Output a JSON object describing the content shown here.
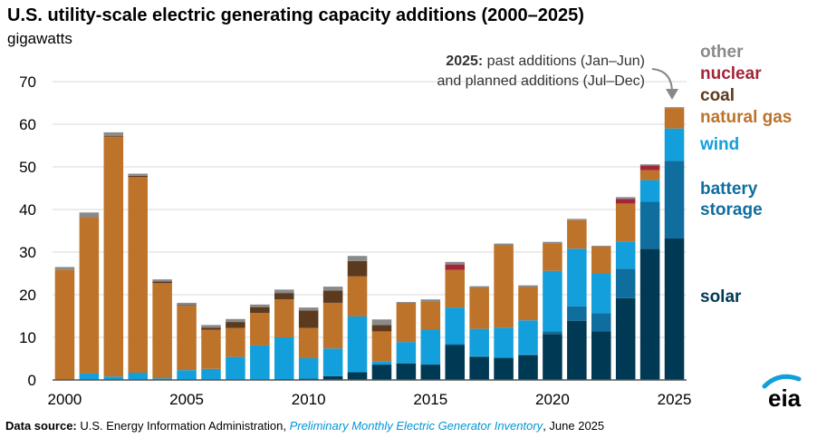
{
  "title": "U.S. utility-scale electric generating capacity additions (2000–2025)",
  "subtitle": "gigawatts",
  "annotation": {
    "bold": "2025:",
    "line1_rest": " past additions (Jan–Jun)",
    "line2": "and planned additions (Jul–Dec)"
  },
  "source": {
    "label": "Data source:",
    "text1": " U.S. Energy Information Administration, ",
    "italic": "Preliminary Monthly Electric Generator Inventory",
    "text2": ", June 2025"
  },
  "logo_text": "eia",
  "colors": {
    "solar": "#003953",
    "battery storage": "#0f6e9e",
    "wind": "#139fdb",
    "natural gas": "#bd732a",
    "coal": "#5c3a1e",
    "nuclear": "#a32638",
    "other": "#8a8a8a"
  },
  "legend": [
    {
      "name": "other",
      "label": "other"
    },
    {
      "name": "nuclear",
      "label": "nuclear"
    },
    {
      "name": "coal",
      "label": "coal"
    },
    {
      "name": "natural-gas",
      "label": "natural gas"
    },
    {
      "name": "wind",
      "label": "wind"
    },
    {
      "name": "battery",
      "label": "battery\nstorage"
    },
    {
      "name": "solar",
      "label": "solar"
    }
  ],
  "chart_data": {
    "type": "bar",
    "stacked": true,
    "ylabel": "gigawatts",
    "ylim": [
      0,
      75
    ],
    "yticks": [
      0,
      10,
      20,
      30,
      40,
      50,
      60,
      70
    ],
    "xticks": [
      2000,
      2005,
      2010,
      2015,
      2020,
      2025
    ],
    "grid": true,
    "legend_position": "right",
    "categories": [
      2000,
      2001,
      2002,
      2003,
      2004,
      2005,
      2006,
      2007,
      2008,
      2009,
      2010,
      2011,
      2012,
      2013,
      2014,
      2015,
      2016,
      2017,
      2018,
      2019,
      2020,
      2021,
      2022,
      2023,
      2024,
      2025
    ],
    "series": [
      {
        "name": "solar",
        "values": [
          0,
          0,
          0,
          0,
          0,
          0,
          0,
          0,
          0.1,
          0.2,
          0.3,
          0.9,
          1.8,
          3.6,
          3.9,
          3.6,
          8.2,
          5.4,
          5.1,
          5.8,
          10.8,
          13.9,
          11.4,
          19.2,
          30.8,
          33.2
        ]
      },
      {
        "name": "battery storage",
        "values": [
          0,
          0,
          0,
          0,
          0,
          0,
          0,
          0,
          0,
          0,
          0,
          0,
          0,
          0,
          0.1,
          0.1,
          0.2,
          0.2,
          0.2,
          0.2,
          0.6,
          3.4,
          4.3,
          6.9,
          11.0,
          18.2
        ]
      },
      {
        "name": "wind",
        "values": [
          0.1,
          1.5,
          0.8,
          1.7,
          0.4,
          2.3,
          2.6,
          5.4,
          8.0,
          9.8,
          4.8,
          6.5,
          13.1,
          0.8,
          4.9,
          8.1,
          8.6,
          6.4,
          7.0,
          8.0,
          14.2,
          13.5,
          9.3,
          6.4,
          5.1,
          7.6
        ]
      },
      {
        "name": "natural gas",
        "values": [
          25.8,
          36.7,
          56.3,
          45.9,
          22.3,
          15.1,
          9.2,
          6.8,
          7.6,
          8.9,
          7.1,
          10.7,
          9.4,
          7.0,
          9.2,
          6.5,
          8.8,
          9.6,
          19.3,
          7.8,
          6.5,
          6.7,
          6.3,
          8.9,
          2.3,
          4.8
        ]
      },
      {
        "name": "coal",
        "values": [
          0,
          0,
          0.2,
          0.3,
          0.4,
          0.2,
          0.5,
          1.4,
          1.4,
          1.5,
          4.1,
          2.9,
          3.6,
          1.5,
          0,
          0,
          0,
          0,
          0,
          0,
          0,
          0,
          0,
          0,
          0,
          0
        ]
      },
      {
        "name": "nuclear",
        "values": [
          0,
          0,
          0,
          0,
          0,
          0,
          0,
          0,
          0,
          0,
          0,
          0,
          0,
          0,
          0,
          0,
          1.3,
          0,
          0,
          0,
          0,
          0,
          0,
          1.1,
          1.1,
          0
        ]
      },
      {
        "name": "other",
        "values": [
          0.6,
          1.1,
          0.8,
          0.5,
          0.5,
          0.5,
          0.6,
          0.7,
          0.6,
          0.8,
          0.7,
          0.9,
          1.2,
          1.3,
          0.2,
          0.6,
          0.6,
          0.4,
          0.4,
          0.4,
          0.3,
          0.3,
          0.2,
          0.4,
          0.3,
          0.2
        ]
      }
    ]
  }
}
